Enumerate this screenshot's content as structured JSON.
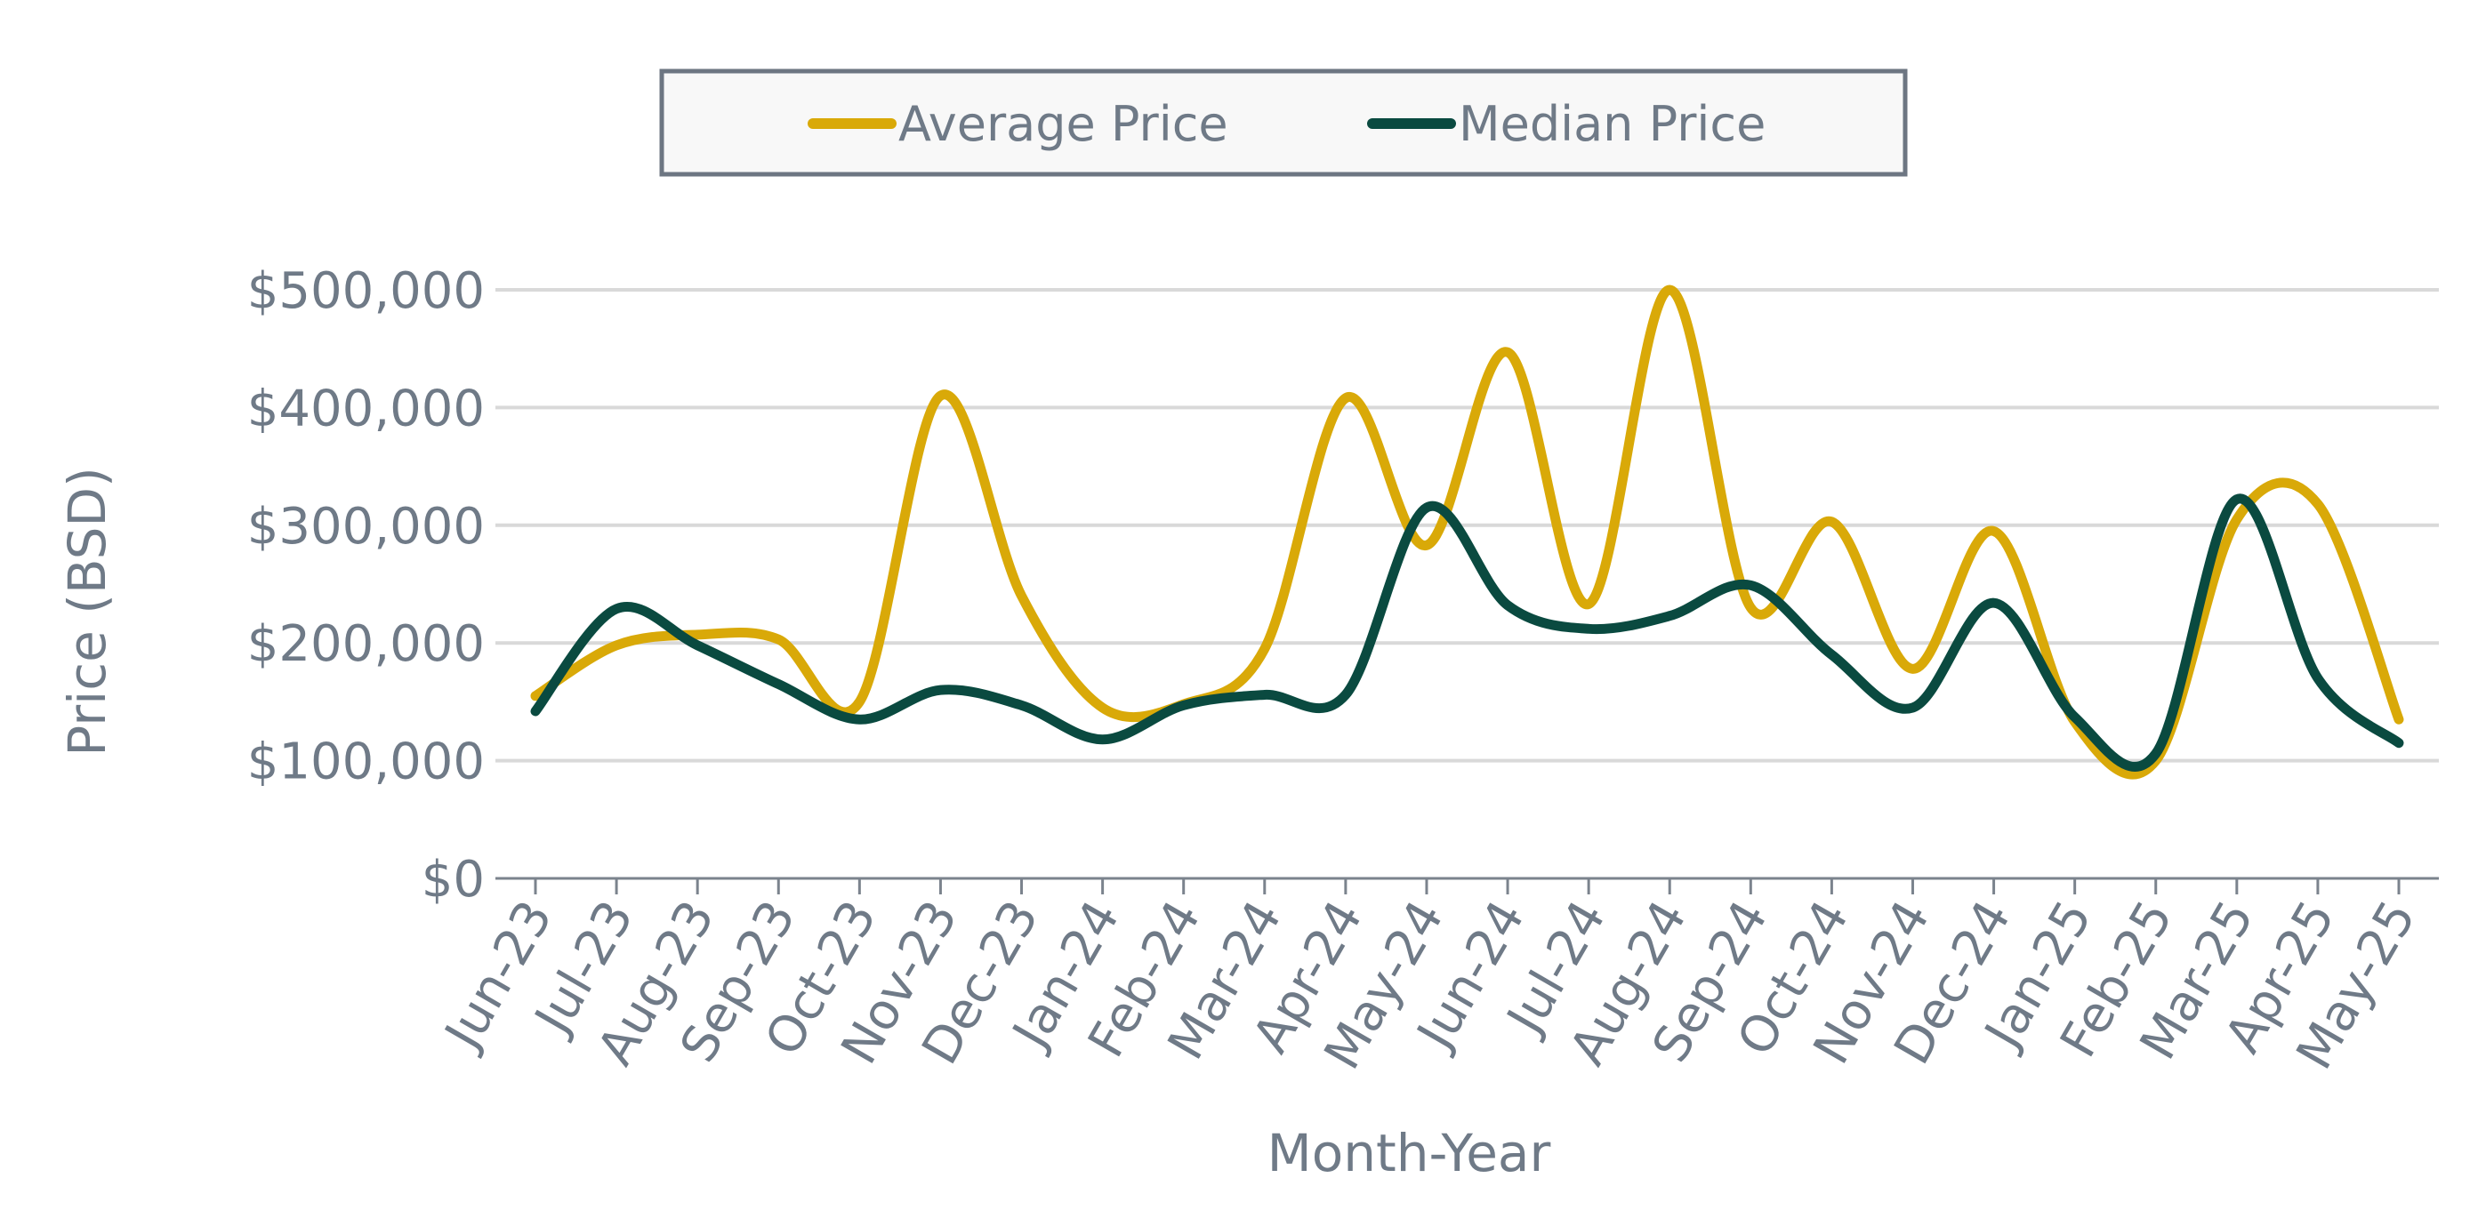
{
  "chart_data": {
    "type": "line",
    "title": "",
    "xlabel": "Month-Year",
    "ylabel": "Price (BSD)",
    "ylim": [
      0,
      500000
    ],
    "yticks": [
      0,
      100000,
      200000,
      300000,
      400000,
      500000
    ],
    "ytick_labels": [
      "$0",
      "$100,000",
      "$200,000",
      "$300,000",
      "$400,000",
      "$500,000"
    ],
    "grid": true,
    "legend": {
      "position": "top-center"
    },
    "categories": [
      "Jun-23",
      "Jul-23",
      "Aug-23",
      "Sep-23",
      "Oct-23",
      "Nov-23",
      "Dec-23",
      "Jan-24",
      "Feb-24",
      "Mar-24",
      "Apr-24",
      "May-24",
      "Jun-24",
      "Jul-24",
      "Aug-24",
      "Sep-24",
      "Oct-24",
      "Nov-24",
      "Dec-24",
      "Jan-25",
      "Feb-25",
      "Mar-25",
      "Apr-25",
      "May-25"
    ],
    "series": [
      {
        "name": "Average Price",
        "color": "#d9a908",
        "values": [
          155000,
          198000,
          207000,
          203000,
          150000,
          410000,
          240000,
          145000,
          148000,
          195000,
          408000,
          283000,
          447000,
          233000,
          500000,
          230000,
          303000,
          178000,
          295000,
          133000,
          100000,
          305000,
          318000,
          135000
        ]
      },
      {
        "name": "Median Price",
        "color": "#0a4a40",
        "values": [
          142000,
          229000,
          198000,
          165000,
          135000,
          160000,
          147000,
          118000,
          147000,
          156000,
          156000,
          315000,
          232000,
          212000,
          223000,
          249000,
          190000,
          145000,
          234000,
          137000,
          106000,
          322000,
          170000,
          115000
        ]
      }
    ]
  }
}
